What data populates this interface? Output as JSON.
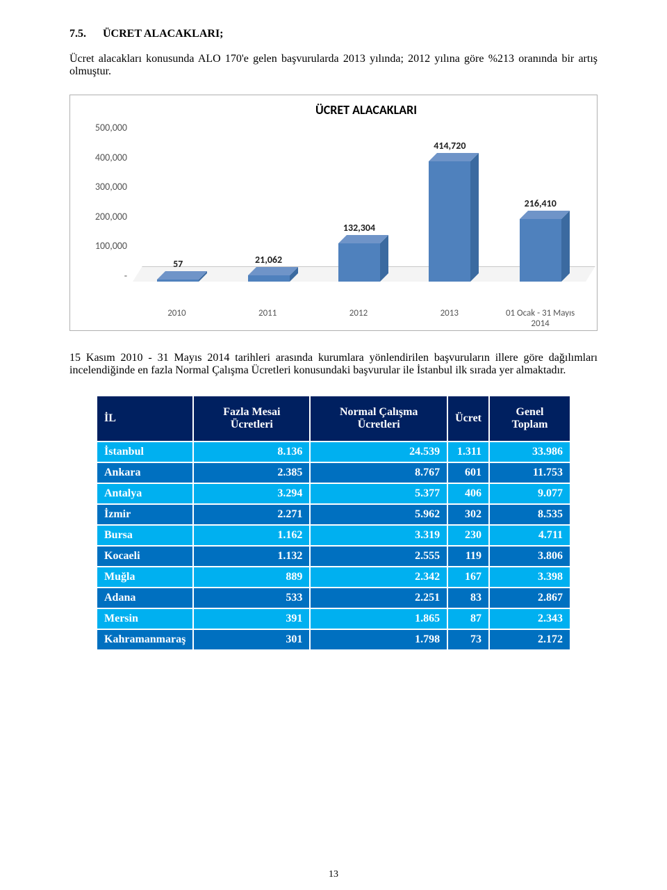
{
  "section": {
    "number": "7.5.",
    "title": "ÜCRET ALACAKLARI;"
  },
  "intro": "Ücret alacakları konusunda ALO 170'e gelen başvurularda 2013 yılında; 2012 yılına göre %213 oranında bir artış olmuştur.",
  "chart": {
    "title": "ÜCRET ALACAKLARI",
    "type": "bar",
    "categories": [
      "2010",
      "2011",
      "2012",
      "2013",
      "01 Ocak - 31 Mayıs 2014"
    ],
    "values": [
      57,
      21062,
      132304,
      414720,
      216410
    ],
    "value_labels": [
      "57",
      "21,062",
      "132,304",
      "414,720",
      "216,410"
    ],
    "ylim": [
      0,
      500000
    ],
    "y_tick_labels": [
      "500,000",
      "400,000",
      "300,000",
      "200,000",
      "100,000",
      "-"
    ],
    "bar_front_color": "#4f81bd",
    "bar_top_color": "#6f94c8",
    "bar_side_color": "#3b6aa0",
    "floor_color": "#f4f4f4",
    "label_fontsize": 14
  },
  "mid": "15 Kasım 2010 - 31 Mayıs 2014 tarihleri arasında kurumlara yönlendirilen başvuruların illere göre dağılımları incelendiğinde en fazla Normal Çalışma Ücretleri konusundaki başvurular ile İstanbul ilk sırada yer almaktadır.",
  "table": {
    "columns": [
      "İL",
      "Fazla Mesai Ücretleri",
      "Normal Çalışma Ücretleri",
      "Ücret",
      "Genel Toplam"
    ],
    "row_colors": [
      "#00b0f0",
      "#0070c0",
      "#00b0f0",
      "#0070c0",
      "#00b0f0",
      "#0070c0",
      "#00b0f0",
      "#0070c0",
      "#00b0f0",
      "#0070c0"
    ],
    "rows": [
      [
        "İstanbul",
        "8.136",
        "24.539",
        "1.311",
        "33.986"
      ],
      [
        "Ankara",
        "2.385",
        "8.767",
        "601",
        "11.753"
      ],
      [
        "Antalya",
        "3.294",
        "5.377",
        "406",
        "9.077"
      ],
      [
        "İzmir",
        "2.271",
        "5.962",
        "302",
        "8.535"
      ],
      [
        "Bursa",
        "1.162",
        "3.319",
        "230",
        "4.711"
      ],
      [
        "Kocaeli",
        "1.132",
        "2.555",
        "119",
        "3.806"
      ],
      [
        "Muğla",
        "889",
        "2.342",
        "167",
        "3.398"
      ],
      [
        "Adana",
        "533",
        "2.251",
        "83",
        "2.867"
      ],
      [
        "Mersin",
        "391",
        "1.865",
        "87",
        "2.343"
      ],
      [
        "Kahramanmaraş",
        "301",
        "1.798",
        "73",
        "2.172"
      ]
    ]
  },
  "page_number": "13"
}
